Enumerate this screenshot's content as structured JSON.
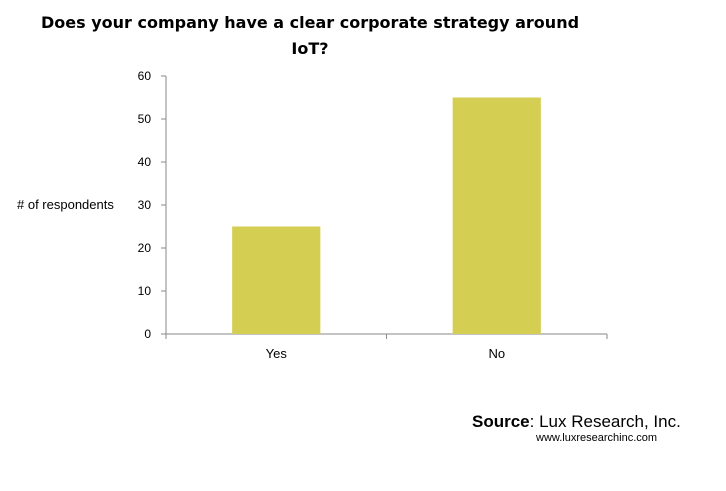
{
  "chart_data": {
    "type": "bar",
    "title": "Does your company have a clear corporate strategy around IoT?",
    "xlabel": "",
    "ylabel": "# of respondents",
    "categories": [
      "Yes",
      "No"
    ],
    "values": [
      25,
      55
    ],
    "ylim": [
      0,
      60
    ],
    "yticks": [
      0,
      10,
      20,
      30,
      40,
      50,
      60
    ],
    "grid": false,
    "bar_color": "#d4ce52"
  },
  "source": {
    "label": "Source",
    "text": ": Lux Research, Inc.",
    "url": "www.luxresearchinc.com"
  }
}
